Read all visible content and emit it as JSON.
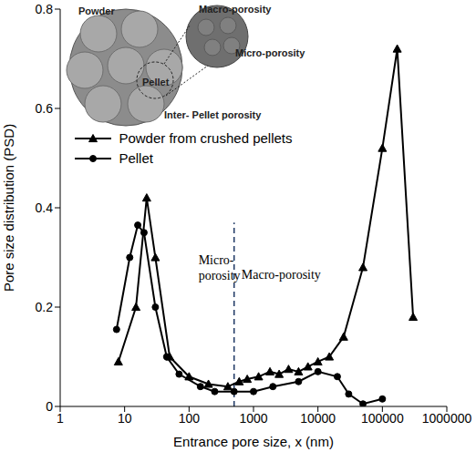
{
  "chart_data": {
    "type": "line",
    "x_label": "Entrance pore size, x (nm)",
    "y_label": "Pore size distribution (PSD)",
    "log": "x",
    "xlim": [
      1,
      1000000
    ],
    "xticks": [
      1,
      10,
      100,
      1000,
      10000,
      100000,
      1000000
    ],
    "ylim": [
      0,
      0.8
    ],
    "yticks": [
      0,
      0.2,
      0.4,
      0.6,
      0.8
    ],
    "grid": false,
    "legend": "left",
    "series": [
      {
        "name": "Powder from crushed pellets",
        "color": "#000000",
        "marker": "triangle",
        "line_style": "solid",
        "x": [
          8,
          15,
          22,
          30,
          50,
          100,
          200,
          400,
          600,
          800,
          1200,
          1800,
          2500,
          3500,
          5000,
          7000,
          10000,
          15000,
          25000,
          50000,
          100000,
          170000,
          300000
        ],
        "values": [
          0.09,
          0.2,
          0.42,
          0.3,
          0.1,
          0.06,
          0.045,
          0.04,
          0.05,
          0.055,
          0.06,
          0.07,
          0.065,
          0.075,
          0.07,
          0.08,
          0.09,
          0.1,
          0.14,
          0.28,
          0.52,
          0.72,
          0.18
        ]
      },
      {
        "name": "Pellet",
        "color": "#000000",
        "marker": "circle",
        "line_style": "solid",
        "x": [
          7.5,
          12,
          16,
          20,
          30,
          45,
          70,
          150,
          250,
          500,
          1000,
          2000,
          5000,
          10000,
          20000,
          30000,
          50000,
          100000
        ],
        "values": [
          0.155,
          0.3,
          0.365,
          0.35,
          0.2,
          0.1,
          0.065,
          0.04,
          0.03,
          0.03,
          0.03,
          0.04,
          0.05,
          0.07,
          0.06,
          0.025,
          0.005,
          0.015
        ]
      }
    ],
    "annotations": [
      {
        "lines": [
          "Micro-",
          "porosity"
        ]
      },
      {
        "lines": [
          "Macro-porosity"
        ]
      }
    ],
    "divider": {
      "x": 500,
      "y": [
        0,
        0.37
      ],
      "line_style": "dashed",
      "color": "#1f3864"
    },
    "inset": {
      "powder": "Powder",
      "macro": "Macro-porosity",
      "micro": "Micro-porosity",
      "pellet": "Pellet",
      "inter": "Inter- Pellet porosity"
    }
  }
}
